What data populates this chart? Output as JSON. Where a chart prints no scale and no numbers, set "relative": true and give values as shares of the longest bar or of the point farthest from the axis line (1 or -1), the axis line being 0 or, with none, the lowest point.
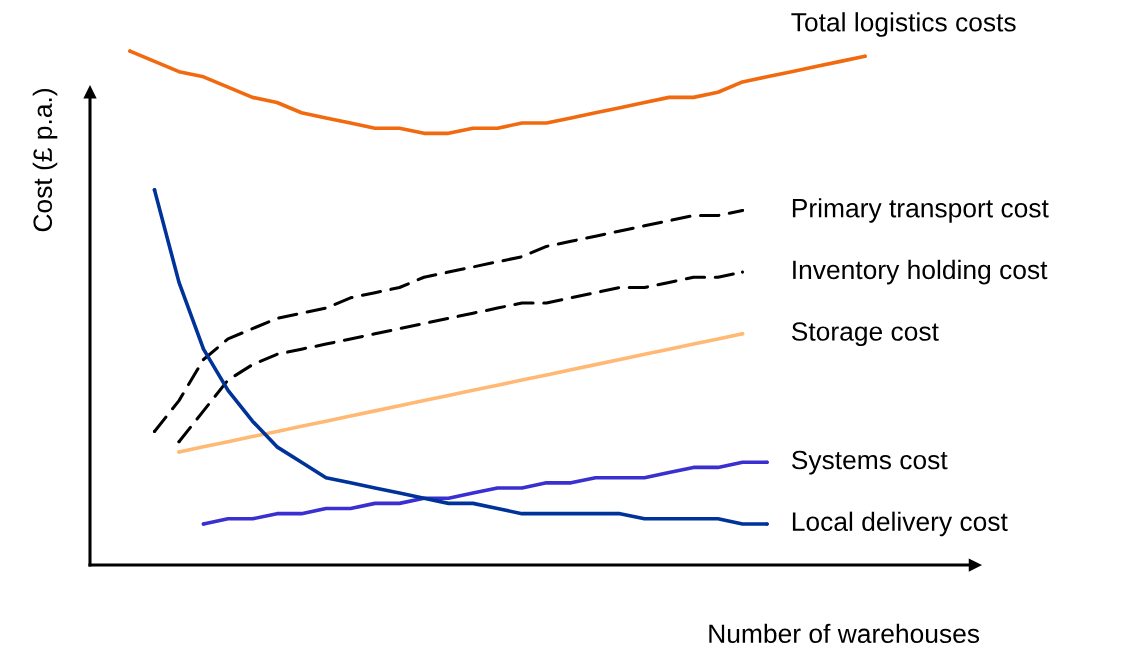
{
  "chart_data": {
    "type": "line",
    "relative": true,
    "xlabel": "Number of warehouses",
    "ylabel": "Cost (£ p.a.)",
    "legend": false,
    "categories": [
      null,
      null,
      null,
      null,
      null,
      null,
      null,
      null,
      null,
      null,
      null,
      null,
      null,
      null,
      null,
      null,
      null,
      null,
      null,
      null,
      null,
      null,
      null,
      null,
      null,
      null,
      null,
      null,
      null,
      null,
      null
    ],
    "series": [
      {
        "name": "Total logistics costs",
        "color": "#f26a10",
        "line_style": "solid",
        "values": [
          1.0,
          0.98,
          0.96,
          0.95,
          0.93,
          0.91,
          0.9,
          0.88,
          0.87,
          0.86,
          0.85,
          0.85,
          0.84,
          0.84,
          0.85,
          0.85,
          0.86,
          0.86,
          0.87,
          0.88,
          0.89,
          0.9,
          0.91,
          0.91,
          0.92,
          0.94,
          0.95,
          0.96,
          0.97,
          0.98,
          0.99
        ]
      },
      {
        "name": "Primary transport cost",
        "color": "#000000",
        "line_style": "dashed",
        "values": [
          null,
          0.26,
          0.32,
          0.4,
          0.44,
          0.46,
          0.48,
          0.49,
          0.5,
          0.52,
          0.53,
          0.54,
          0.56,
          0.57,
          0.58,
          0.59,
          0.6,
          0.62,
          0.63,
          0.64,
          0.65,
          0.66,
          0.67,
          0.68,
          0.68,
          0.69,
          null,
          null,
          null,
          null,
          null
        ]
      },
      {
        "name": "Inventory holding cost",
        "color": "#000000",
        "line_style": "dashed",
        "values": [
          null,
          null,
          0.24,
          0.3,
          0.36,
          0.39,
          0.41,
          0.42,
          0.43,
          0.44,
          0.45,
          0.46,
          0.47,
          0.48,
          0.49,
          0.5,
          0.51,
          0.51,
          0.52,
          0.53,
          0.54,
          0.54,
          0.55,
          0.56,
          0.56,
          0.57,
          null,
          null,
          null,
          null,
          null
        ]
      },
      {
        "name": "Storage cost",
        "color": "#ffb974",
        "line_style": "solid",
        "values": [
          null,
          null,
          0.22,
          0.23,
          0.24,
          0.25,
          0.26,
          0.27,
          0.28,
          0.29,
          0.3,
          0.31,
          0.32,
          0.33,
          0.34,
          0.35,
          0.36,
          0.37,
          0.38,
          0.39,
          0.4,
          0.41,
          0.42,
          0.43,
          0.44,
          0.45,
          null,
          null,
          null,
          null,
          null
        ]
      },
      {
        "name": "Systems cost",
        "color": "#3a2fd0",
        "line_style": "solid",
        "values": [
          null,
          null,
          null,
          0.08,
          0.09,
          0.09,
          0.1,
          0.1,
          0.11,
          0.11,
          0.12,
          0.12,
          0.13,
          0.13,
          0.14,
          0.15,
          0.15,
          0.16,
          0.16,
          0.17,
          0.17,
          0.17,
          0.18,
          0.19,
          0.19,
          0.2,
          0.2,
          null,
          null,
          null,
          null
        ]
      },
      {
        "name": "Local delivery cost",
        "color": "#003399",
        "line_style": "solid",
        "values": [
          null,
          0.73,
          0.55,
          0.42,
          0.34,
          0.28,
          0.23,
          0.2,
          0.17,
          0.16,
          0.15,
          0.14,
          0.13,
          0.12,
          0.12,
          0.11,
          0.1,
          0.1,
          0.1,
          0.1,
          0.1,
          0.09,
          0.09,
          0.09,
          0.09,
          0.08,
          0.08,
          null,
          null,
          null,
          null
        ]
      }
    ]
  }
}
